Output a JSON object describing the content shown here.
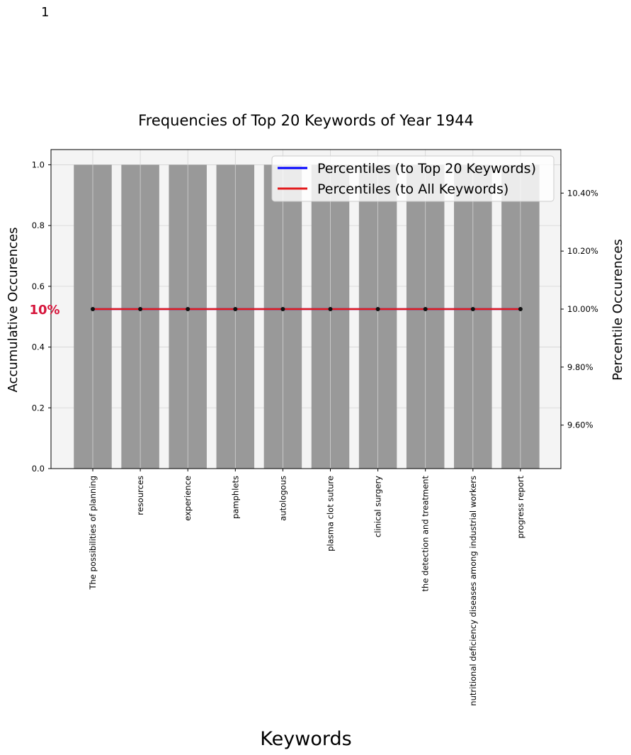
{
  "page_number": "1",
  "chart_data": {
    "type": "bar",
    "title": "Frequencies of Top 20 Keywords of Year 1944",
    "xlabel": "Keywords",
    "ylabel": "Accumulative Occurences",
    "y2label": "Percentile Occurences",
    "categories": [
      "The possibilities of planning",
      "resources",
      "experience",
      "pamphlets",
      "autologous",
      "plasma clot suture",
      "clinical surgery",
      "the detection and treatment",
      "nutritional deficiency diseases among industrial workers",
      "progress report"
    ],
    "values": [
      1,
      1,
      1,
      1,
      1,
      1,
      1,
      1,
      1,
      1
    ],
    "ylim": [
      0,
      1.05
    ],
    "yticks": [
      0.0,
      0.2,
      0.4,
      0.6,
      0.8,
      1.0
    ],
    "ytick_labels": [
      "0.0",
      "0.2",
      "0.4",
      "0.6",
      "0.8",
      "1.0"
    ],
    "y2lim": [
      9.45,
      10.55
    ],
    "y2ticks": [
      9.6,
      9.8,
      10.0,
      10.2,
      10.4
    ],
    "y2tick_labels": [
      "9.60%",
      "9.80%",
      "10.00%",
      "10.20%",
      "10.40%"
    ],
    "lines": [
      {
        "name": "Percentiles (to Top 20 Keywords)",
        "color": "#0000ff",
        "values": [
          10,
          10,
          10,
          10,
          10,
          10,
          10,
          10,
          10,
          10
        ]
      },
      {
        "name": "Percentiles (to All Keywords)",
        "color": "#e31a1c",
        "values": [
          10,
          10,
          10,
          10,
          10,
          10,
          10,
          10,
          10,
          10
        ]
      }
    ],
    "annotation": {
      "text": "10%",
      "value": 10,
      "color": "#d6163c"
    },
    "bar_color": "#999999",
    "plot_background": "#f4f4f4",
    "grid": true,
    "legend_position": "top-right"
  }
}
